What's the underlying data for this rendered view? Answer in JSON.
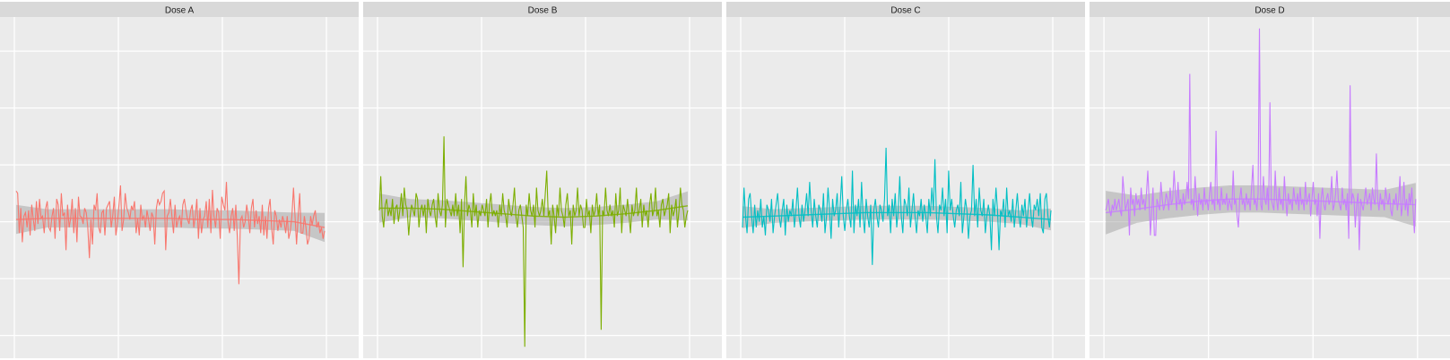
{
  "chart_data": {
    "type": "line",
    "layout": "facet-row",
    "grid": true,
    "panels": [
      {
        "title": "Dose A",
        "color": "#F8766D",
        "smooth": [
          0.02,
          0.03,
          0.03,
          0.03,
          0.03,
          0.03,
          0.02,
          0.02,
          0.01,
          0.0,
          -0.05
        ],
        "band": 0.08,
        "values": [
          0.27,
          0.25,
          -0.1,
          0.12,
          -0.18,
          0.05,
          0.08,
          -0.05,
          0.1,
          -0.12,
          0.15,
          0.02,
          -0.08,
          0.18,
          -0.02,
          0.2,
          0.03,
          0.05,
          -0.1,
          0.12,
          0.18,
          -0.05,
          -0.08,
          0.05,
          0.12,
          -0.15,
          0.2,
          0.15,
          -0.08,
          0.25,
          0.05,
          0.08,
          -0.25,
          0.15,
          -0.05,
          0.03,
          0.2,
          -0.1,
          0.12,
          -0.18,
          0.22,
          0.05,
          0.04,
          -0.02,
          0.12,
          0.08,
          -0.05,
          -0.32,
          0.02,
          -0.2,
          0.15,
          0.1,
          0.25,
          -0.05,
          -0.1,
          0.08,
          0.1,
          -0.12,
          0.12,
          0.15,
          0.18,
          -0.05,
          0.05,
          0.22,
          -0.12,
          -0.02,
          0.15,
          0.32,
          -0.08,
          0.02,
          0.25,
          0.12,
          0.08,
          0.02,
          0.14,
          0.1,
          0.18,
          -0.1,
          0.03,
          -0.12,
          0.15,
          0.02,
          0.05,
          -0.05,
          0.1,
          0.02,
          -0.08,
          0.08,
          0.04,
          -0.2,
          0.12,
          0.2,
          0.15,
          0.18,
          0.25,
          0.27,
          -0.25,
          0.05,
          0.08,
          0.2,
          0.05,
          -0.1,
          0.15,
          -0.05,
          0.02,
          0.05,
          -0.05,
          0.15,
          0.2,
          0.1,
          0.02,
          -0.02,
          0.1,
          0.15,
          -0.05,
          0.05,
          0.2,
          -0.15,
          0.12,
          -0.1,
          0.02,
          0.05,
          0.18,
          -0.05,
          0.2,
          -0.1,
          0.28,
          0.05,
          -0.05,
          0.12,
          0.08,
          -0.15,
          0.22,
          0.15,
          0.1,
          0.35,
          0.0,
          -0.1,
          0.05,
          0.12,
          -0.08,
          0.15,
          -0.15,
          -0.55,
          0.02,
          0.05,
          -0.05,
          0.0,
          0.15,
          0.05,
          -0.1,
          0.12,
          0.2,
          -0.05,
          0.1,
          -0.02,
          0.05,
          -0.1,
          0.15,
          -0.12,
          0.05,
          -0.15,
          0.12,
          0.2,
          -0.05,
          -0.2,
          0.1,
          0.05,
          -0.08,
          0.02,
          -0.05,
          0.05,
          0.0,
          -0.1,
          0.05,
          -0.15,
          -0.08,
          0.05,
          0.3,
          0.05,
          -0.2,
          0.05,
          0.25,
          -0.1,
          -0.1,
          0.05,
          -0.05,
          -0.2,
          -0.15,
          0.05,
          -0.03,
          0.05,
          0.1,
          -0.05,
          0.0,
          -0.1,
          -0.05,
          -0.15,
          -0.08
        ]
      },
      {
        "title": "Dose B",
        "color": "#7CAE00",
        "smooth": [
          0.12,
          0.12,
          0.11,
          0.09,
          0.07,
          0.05,
          0.04,
          0.05,
          0.07,
          0.1,
          0.14
        ],
        "band": 0.08,
        "values": [
          0.1,
          0.4,
          0.05,
          -0.05,
          0.15,
          0.2,
          0.05,
          0.12,
          0.05,
          0.2,
          -0.02,
          0.12,
          0.15,
          0.0,
          0.1,
          0.25,
          0.05,
          0.3,
          0.15,
          0.1,
          -0.12,
          0.05,
          0.15,
          0.1,
          0.05,
          0.25,
          0.2,
          -0.05,
          0.1,
          0.15,
          0.05,
          0.15,
          -0.1,
          0.2,
          0.1,
          0.05,
          0.15,
          0.2,
          0.05,
          -0.05,
          0.25,
          0.1,
          0.05,
          0.15,
          0.75,
          -0.05,
          0.2,
          0.15,
          0.1,
          0.05,
          0.15,
          0.05,
          0.25,
          0.05,
          0.15,
          -0.1,
          0.2,
          -0.4,
          0.15,
          0.4,
          0.05,
          0.15,
          0.1,
          -0.05,
          0.25,
          0.05,
          0.15,
          -0.05,
          0.1,
          0.05,
          0.15,
          0.1,
          0.05,
          0.2,
          -0.05,
          0.15,
          0.25,
          0.05,
          0.1,
          0.05,
          0.1,
          -0.05,
          0.15,
          0.05,
          0.25,
          0.1,
          0.05,
          -0.05,
          0.2,
          0.1,
          0.05,
          0.15,
          0.3,
          0.05,
          -0.05,
          0.1,
          0.15,
          0.05,
          -0.05,
          -1.1,
          0.15,
          0.05,
          0.25,
          0.1,
          0.05,
          0.15,
          -0.05,
          0.3,
          0.1,
          0.05,
          0.1,
          0.2,
          0.05,
          0.25,
          0.45,
          0.05,
          0.1,
          -0.2,
          0.15,
          0.05,
          -0.1,
          0.15,
          0.05,
          0.3,
          0.1,
          0.05,
          -0.05,
          0.15,
          0.25,
          0.05,
          0.1,
          -0.2,
          0.15,
          0.05,
          0.1,
          0.3,
          0.05,
          0.15,
          0.1,
          -0.05,
          -0.05,
          0.2,
          0.05,
          0.1,
          -0.1,
          0.15,
          0.05,
          0.1,
          0.25,
          0.05,
          0.15,
          -0.95,
          0.1,
          0.05,
          0.3,
          0.1,
          0.05,
          0.15,
          0.05,
          0.1,
          -0.05,
          0.25,
          0.05,
          0.1,
          0.3,
          -0.1,
          0.15,
          0.1,
          0.05,
          0.2,
          0.05,
          -0.1,
          0.15,
          0.05,
          0.1,
          0.3,
          0.05,
          0.1,
          0.2,
          -0.05,
          0.15,
          0.05,
          0.1,
          -0.05,
          0.15,
          0.25,
          0.05,
          0.1,
          0.3,
          0.05,
          0.1,
          -0.05,
          0.15,
          0.2,
          0.05,
          0.1,
          0.15,
          0.25,
          -0.1,
          0.15,
          0.05,
          0.1,
          0.2,
          -0.05,
          0.1,
          0.3,
          0.15,
          0.1,
          -0.05,
          0.05,
          0.1
        ]
      },
      {
        "title": "Dose C",
        "color": "#00BFC4",
        "smooth": [
          0.04,
          0.05,
          0.06,
          0.07,
          0.08,
          0.08,
          0.08,
          0.07,
          0.06,
          0.04,
          0.02
        ],
        "band": 0.06,
        "values": [
          -0.05,
          0.3,
          0.05,
          -0.1,
          0.2,
          0.25,
          0.05,
          -0.1,
          0.15,
          -0.05,
          0.1,
          0.0,
          0.2,
          -0.05,
          0.05,
          -0.12,
          0.15,
          0.1,
          0.0,
          0.2,
          -0.1,
          0.05,
          0.15,
          0.25,
          0.05,
          -0.05,
          0.1,
          0.2,
          -0.12,
          0.15,
          0.0,
          0.1,
          0.05,
          0.2,
          -0.05,
          0.1,
          0.3,
          0.05,
          -0.05,
          0.15,
          0.0,
          0.1,
          0.25,
          0.05,
          0.35,
          0.1,
          -0.05,
          0.2,
          0.05,
          -0.05,
          0.15,
          0.1,
          0.0,
          0.25,
          -0.1,
          0.05,
          0.3,
          0.1,
          -0.15,
          0.2,
          0.05,
          0.1,
          0.25,
          -0.05,
          0.15,
          0.4,
          0.05,
          -0.08,
          0.1,
          0.2,
          0.05,
          -0.05,
          0.45,
          -0.1,
          0.15,
          0.05,
          0.2,
          -0.05,
          0.35,
          0.05,
          -0.1,
          0.2,
          0.05,
          -0.05,
          0.15,
          -0.38,
          0.1,
          0.2,
          0.05,
          -0.05,
          0.15,
          0.1,
          0.0,
          0.2,
          0.65,
          0.05,
          0.15,
          -0.1,
          0.2,
          0.05,
          0.25,
          -0.05,
          0.1,
          0.4,
          0.05,
          -0.1,
          0.2,
          0.15,
          0.05,
          0.3,
          -0.05,
          0.1,
          0.25,
          0.05,
          -0.1,
          0.1,
          0.05,
          0.2,
          0.0,
          0.15,
          0.05,
          -0.1,
          0.2,
          0.05,
          0.3,
          0.1,
          0.55,
          0.05,
          -0.1,
          0.15,
          0.1,
          0.3,
          0.05,
          0.2,
          -0.1,
          0.45,
          0.1,
          0.2,
          0.05,
          -0.05,
          0.1,
          0.15,
          0.05,
          0.35,
          -0.1,
          0.05,
          0.2,
          0.1,
          -0.15,
          0.05,
          0.1,
          0.5,
          0.05,
          0.2,
          -0.05,
          0.3,
          0.1,
          0.05,
          0.2,
          -0.1,
          0.05,
          0.15,
          0.05,
          -0.25,
          0.2,
          0.05,
          0.3,
          0.1,
          -0.25,
          0.1,
          0.05,
          0.2,
          -0.05,
          0.3,
          0.05,
          0.1,
          0.0,
          0.2,
          -0.05,
          0.1,
          0.25,
          0.05,
          -0.05,
          0.15,
          0.05,
          0.2,
          -0.05,
          0.1,
          0.25,
          0.05,
          -0.05,
          0.15,
          0.1,
          0.2,
          0.05,
          0.25,
          -0.05,
          -0.1,
          0.2,
          0.25,
          0.05,
          -0.05,
          0.1
        ]
      },
      {
        "title": "Dose D",
        "color": "#C77CFF",
        "smooth": [
          0.08,
          0.11,
          0.15,
          0.18,
          0.2,
          0.2,
          0.19,
          0.18,
          0.17,
          0.16,
          0.15
        ],
        "band": 0.12,
        "values": [
          0.1,
          0.15,
          0.2,
          0.1,
          0.05,
          0.15,
          0.1,
          0.2,
          0.1,
          0.15,
          0.2,
          0.1,
          0.05,
          0.4,
          0.25,
          0.1,
          0.15,
          0.2,
          -0.12,
          0.3,
          0.15,
          0.2,
          0.05,
          0.25,
          0.15,
          0.2,
          0.1,
          0.3,
          0.15,
          0.2,
          0.1,
          0.25,
          0.45,
          0.2,
          -0.12,
          0.1,
          0.3,
          -0.12,
          -0.12,
          0.2,
          0.15,
          0.1,
          0.35,
          0.2,
          0.1,
          0.15,
          0.25,
          0.2,
          0.1,
          0.3,
          0.15,
          0.2,
          0.45,
          0.25,
          0.1,
          0.35,
          0.15,
          0.2,
          0.1,
          0.25,
          0.15,
          0.2,
          0.35,
          0.2,
          1.3,
          0.15,
          0.2,
          0.1,
          0.4,
          0.2,
          0.05,
          0.25,
          0.15,
          0.2,
          0.1,
          0.3,
          0.15,
          0.2,
          0.1,
          0.25,
          0.35,
          0.15,
          0.2,
          0.1,
          0.8,
          0.15,
          0.2,
          0.1,
          0.3,
          0.15,
          0.2,
          0.15,
          0.25,
          0.1,
          0.2,
          0.15,
          0.1,
          0.45,
          0.15,
          0.2,
          0.05,
          -0.05,
          0.2,
          0.3,
          0.15,
          0.2,
          0.1,
          0.25,
          0.15,
          0.2,
          0.1,
          0.3,
          0.5,
          0.15,
          0.2,
          0.1,
          0.25,
          1.7,
          0.15,
          0.1,
          0.4,
          0.2,
          0.15,
          0.3,
          0.1,
          1.05,
          0.2,
          0.15,
          0.1,
          0.45,
          0.2,
          0.1,
          0.3,
          0.15,
          0.2,
          0.1,
          0.4,
          0.2,
          0.05,
          0.25,
          0.15,
          0.2,
          0.1,
          0.3,
          0.2,
          0.15,
          0.25,
          0.1,
          0.3,
          0.15,
          0.2,
          0.1,
          0.35,
          0.15,
          0.2,
          0.25,
          0.05,
          0.2,
          0.35,
          0.15,
          0.2,
          0.05,
          0.25,
          -0.15,
          0.2,
          0.3,
          0.15,
          0.1,
          0.2,
          0.25,
          0.15,
          0.2,
          0.4,
          0.1,
          0.15,
          0.25,
          0.45,
          0.2,
          0.15,
          0.1,
          0.3,
          0.15,
          0.2,
          0.1,
          0.25,
          -0.15,
          1.2,
          0.15,
          0.25,
          0.2,
          -0.05,
          0.15,
          0.25,
          -0.25,
          0.2,
          0.15,
          0.1,
          0.2,
          0.3,
          0.15,
          0.2,
          0.25,
          0.1,
          0.3,
          0.2,
          0.15,
          0.6,
          0.2,
          0.1,
          0.25,
          0.15,
          0.2,
          0.1,
          0.3,
          0.2,
          0.15,
          0.25,
          0.1,
          0.05,
          0.2,
          0.15,
          0.25,
          0.1,
          0.2,
          0.4,
          0.05,
          0.15,
          0.35,
          0.1,
          0.2,
          0.05,
          0.25,
          0.15,
          0.3,
          0.1,
          -0.1,
          0.2
        ]
      }
    ]
  }
}
